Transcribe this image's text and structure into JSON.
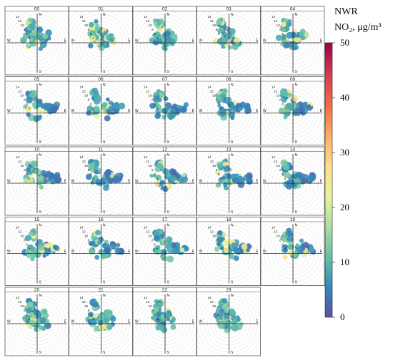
{
  "chart_data": {
    "type": "polar-bivariate-grid",
    "panel_titles": [
      "00",
      "01",
      "02",
      "03",
      "04",
      "05",
      "06",
      "07",
      "08",
      "09",
      "10",
      "11",
      "12",
      "13",
      "14",
      "15",
      "16",
      "17",
      "18",
      "19",
      "20",
      "21",
      "22",
      "23"
    ],
    "radial_labels": [
      "4",
      "6",
      "8",
      "10",
      "12",
      "14"
    ],
    "compass_labels": {
      "n": "N",
      "e": "E",
      "s": "S",
      "w": "W"
    },
    "colorbar": {
      "title_line1": "NWR",
      "title_line2": "NO₂, μg/m³",
      "ticks": [
        0,
        10,
        20,
        30,
        40,
        50
      ],
      "tick_labels": [
        "0",
        "10",
        "20",
        "30",
        "40",
        "50"
      ],
      "min": 0,
      "max": 50,
      "colormap": [
        "#5e4fa2",
        "#3288bd",
        "#66c2a5",
        "#abdda4",
        "#e6f598",
        "#fee08b",
        "#fdae61",
        "#f46d43",
        "#d53e4f",
        "#9e0142"
      ]
    }
  }
}
